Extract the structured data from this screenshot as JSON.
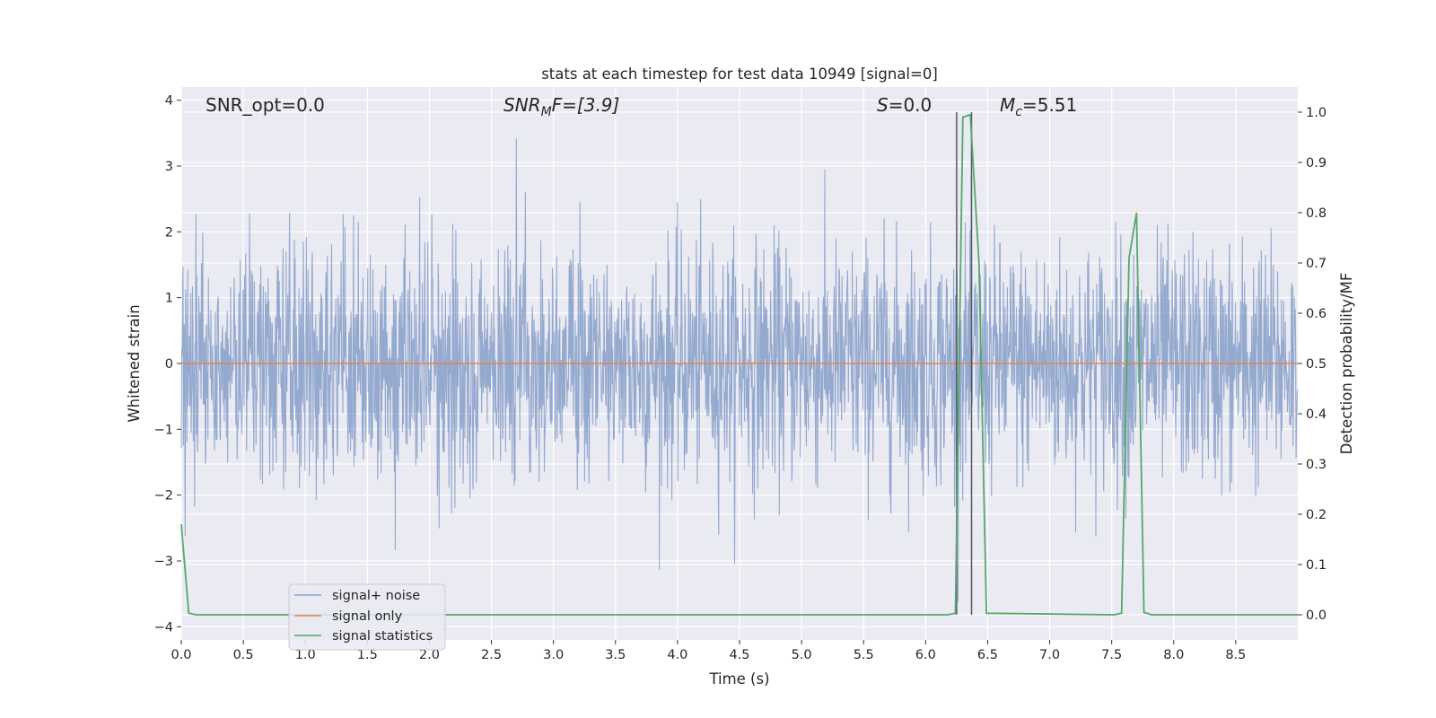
{
  "chart_data": {
    "type": "line",
    "title": "stats at each timestep for test data 10949 [signal=0]",
    "xlabel": "Time (s)",
    "ylabel": "Whitened strain",
    "y2label": "Detection probability/MF",
    "xlim": [
      0,
      9
    ],
    "ylim": [
      -4.2,
      4.2
    ],
    "y2lim": [
      -0.05,
      1.05
    ],
    "xticks": [
      "0.0",
      "0.5",
      "1.0",
      "1.5",
      "2.0",
      "2.5",
      "3.0",
      "3.5",
      "4.0",
      "4.5",
      "5.0",
      "5.5",
      "6.0",
      "6.5",
      "7.0",
      "7.5",
      "8.0",
      "8.5"
    ],
    "yticks": [
      "−4",
      "−3",
      "−2",
      "−1",
      "0",
      "1",
      "2",
      "3",
      "4"
    ],
    "y2ticks": [
      "0.0",
      "0.1",
      "0.2",
      "0.3",
      "0.4",
      "0.5",
      "0.6",
      "0.7",
      "0.8",
      "0.9",
      "1.0"
    ],
    "grid": true,
    "legend_position": "lower-left",
    "annotations": {
      "snr_opt": "SNR_opt=0.0",
      "snr_mf_main": "SNR",
      "snr_mf_sub": "M",
      "snr_mf_rest": "F=[3.9]",
      "s_main": "S",
      "s_rest": "=0.0",
      "mc_main": "M",
      "mc_sub": "c",
      "mc_rest": "=5.51"
    },
    "vlines_x": [
      6.25,
      6.37
    ],
    "series": [
      {
        "name": "signal+ noise",
        "color": "#4c72b0",
        "kind": "noise",
        "sigma": 0.9,
        "range": [
          -4.0,
          3.8
        ]
      },
      {
        "name": "signal only",
        "color": "#dd8452",
        "x": [
          0,
          9
        ],
        "y": [
          0,
          0
        ]
      },
      {
        "name": "signal statistics",
        "color": "#55a868",
        "x": [
          0.0,
          0.06,
          0.12,
          6.18,
          6.24,
          6.3,
          6.36,
          6.43,
          6.49,
          7.52,
          7.58,
          7.64,
          7.7,
          7.76,
          7.82,
          9.0
        ],
        "y": [
          0.18,
          0.003,
          0.0,
          0.0,
          0.003,
          0.99,
          0.995,
          0.7,
          0.003,
          0.0,
          0.003,
          0.71,
          0.8,
          0.005,
          0.0,
          0.0
        ]
      }
    ]
  }
}
